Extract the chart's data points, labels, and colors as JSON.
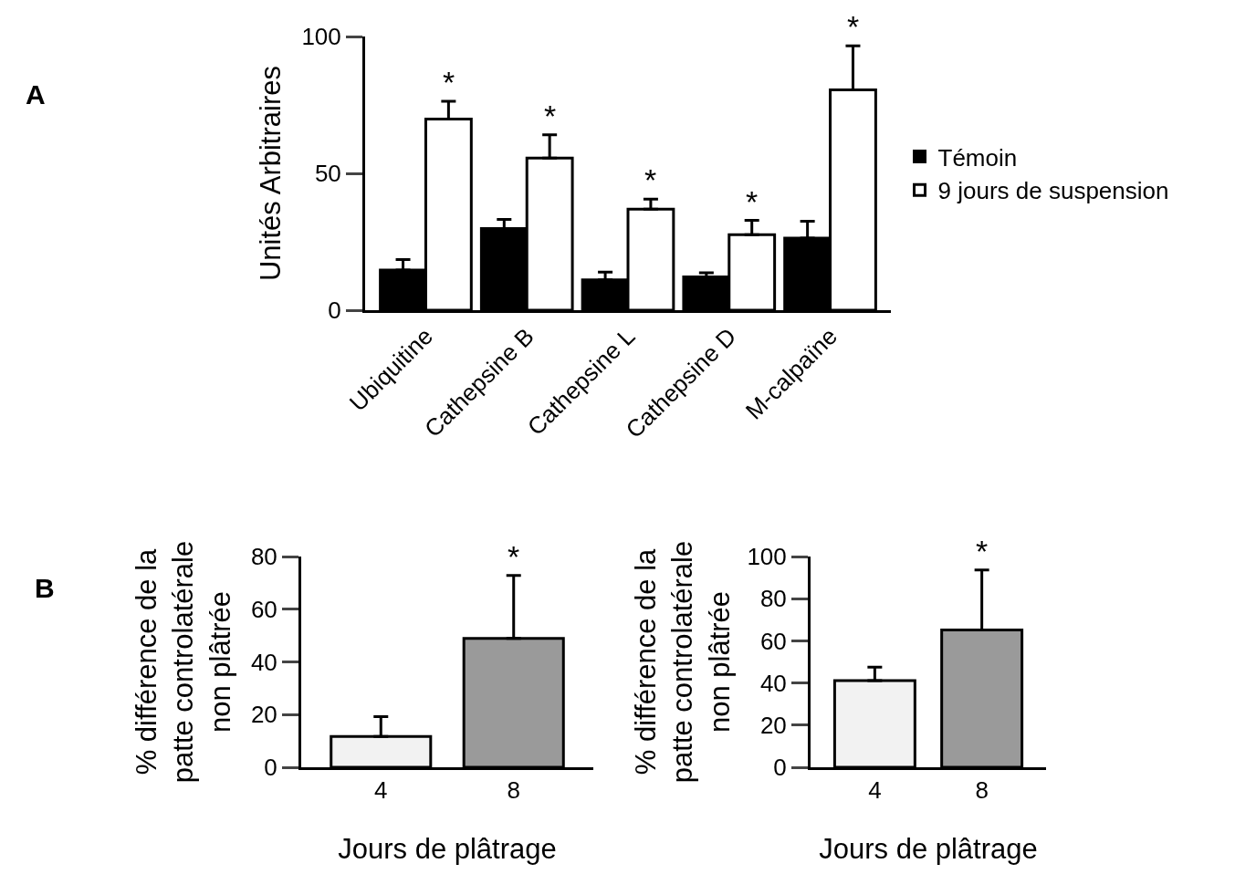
{
  "chart_data": [
    {
      "type": "bar",
      "ylabel": "Unités Arbitraires",
      "categories": [
        "Ubiquitine",
        "Cathepsine B",
        "Cathepsine L",
        "Cathepsine D",
        "M-calpaïne"
      ],
      "series": [
        {
          "name": "Témoin",
          "color": "#000000",
          "values": [
            14.7,
            29.8,
            11.1,
            12.2,
            26.3
          ],
          "errors": [
            [
              14.7,
              18.5
            ],
            [
              29.8,
              33.2
            ],
            [
              11.1,
              13.9
            ],
            [
              12.2,
              13.7
            ],
            [
              26.3,
              32.5
            ]
          ]
        },
        {
          "name": "9 jours de suspension",
          "color": "#ffffff",
          "values": [
            69.8,
            55.6,
            36.9,
            27.6,
            80.5
          ],
          "errors": [
            [
              69.8,
              76.3
            ],
            [
              55.6,
              64.1
            ],
            [
              36.9,
              40.6
            ],
            [
              27.6,
              32.8
            ],
            [
              80.5,
              96.6
            ]
          ]
        }
      ],
      "ylim": [
        0,
        100
      ],
      "yticks": [
        0,
        50,
        100
      ],
      "legend": "right",
      "grid": false,
      "annotations": [
        "A",
        {
          "text": "*",
          "x": "Ubiquitine",
          "y": 69.8
        },
        {
          "text": "*",
          "x": "Cathepsine B",
          "y": 55.6
        },
        {
          "text": "*",
          "x": "Cathepsine L",
          "y": 36.9
        },
        {
          "text": "*",
          "x": "Cathepsine D",
          "y": 27.6
        },
        {
          "text": "*",
          "x": "M-calpaïne",
          "y": 80.5
        }
      ]
    },
    {
      "type": "bar",
      "ylabel": "% différence de la\npatte controlatérale\nnon plâtrée",
      "xlabel": "Jours de plâtrage",
      "categories": [
        "4",
        "8"
      ],
      "values": [
        11.7,
        48.9
      ],
      "colors": [
        "#f2f2f2",
        "#9a9a9a"
      ],
      "errors": [
        [
          11.7,
          19.2
        ],
        [
          48.9,
          72.8
        ]
      ],
      "ylim": [
        0,
        80
      ],
      "yticks": [
        0,
        20,
        40,
        60,
        80
      ],
      "legend": false,
      "grid": false,
      "annotations": [
        "B",
        {
          "text": "*",
          "x": "8",
          "y": 48.9
        }
      ]
    },
    {
      "type": "bar",
      "ylabel": "% différence de la\npatte controlatérale\nnon plâtrée",
      "xlabel": "Jours de plâtrage",
      "categories": [
        "4",
        "8"
      ],
      "values": [
        41.1,
        65.2
      ],
      "colors": [
        "#f2f2f2",
        "#9a9a9a"
      ],
      "errors": [
        [
          41.1,
          47.5
        ],
        [
          65.2,
          93.6
        ]
      ],
      "ylim": [
        0,
        100
      ],
      "yticks": [
        0,
        20,
        40,
        60,
        80,
        100
      ],
      "legend": false,
      "grid": false,
      "annotations": [
        {
          "text": "*",
          "x": "8",
          "y": 65.2
        }
      ]
    }
  ]
}
